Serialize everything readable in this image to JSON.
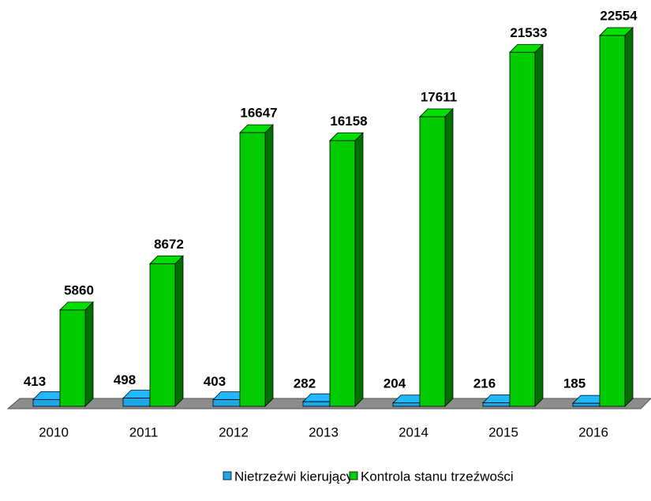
{
  "chart_data": {
    "type": "bar3d",
    "categories": [
      "2010",
      "2011",
      "2012",
      "2013",
      "2014",
      "2015",
      "2016"
    ],
    "series": [
      {
        "name": "Nietrzeźwi kierujący",
        "color": "#1ea7e8",
        "values": [
          413,
          498,
          403,
          282,
          204,
          216,
          185
        ]
      },
      {
        "name": "Kontrola stanu trzeźwości",
        "color": "#00cc00",
        "values": [
          5860,
          8672,
          16647,
          16158,
          17611,
          21533,
          22554
        ]
      }
    ]
  }
}
